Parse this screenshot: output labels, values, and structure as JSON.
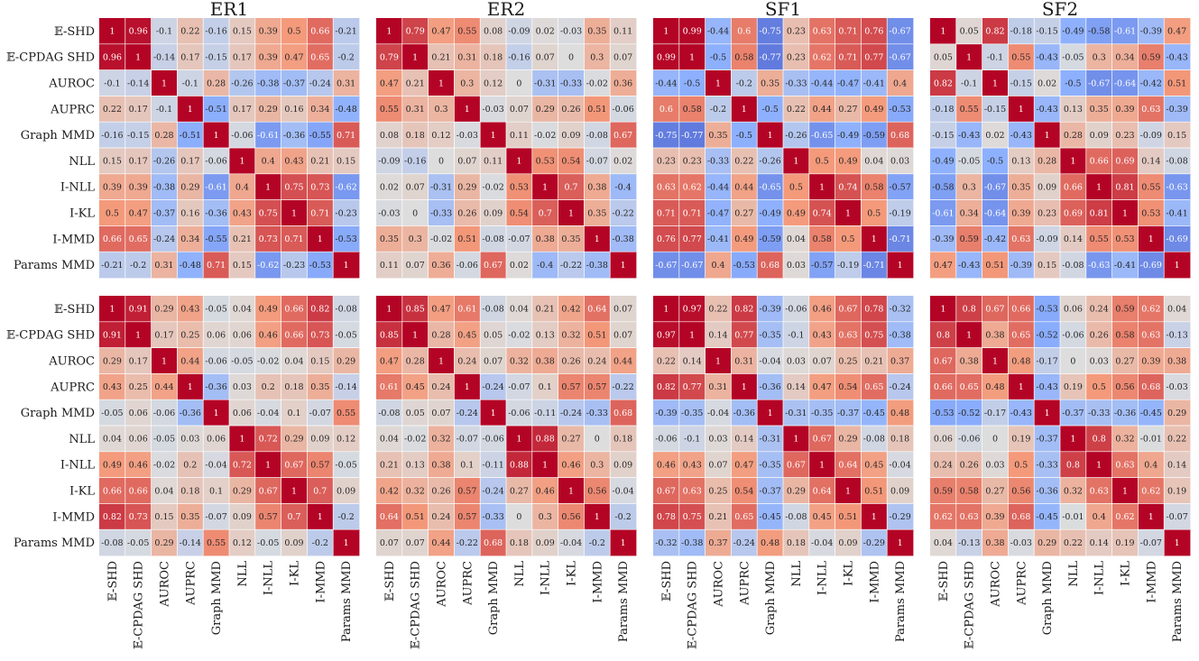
{
  "chart_data": {
    "type": "heatmap",
    "labels": [
      "𝔼-SHD",
      "𝔼-CPDAG SHD",
      "AUROC",
      "AUPRC",
      "Graph MMD",
      "NLL",
      "I-NLL",
      "I-KL",
      "I-MMD",
      "Params MMD"
    ],
    "colormap": "coolwarm",
    "vmin": -1,
    "vmax": 1,
    "panel_titles": [
      "ER1",
      "ER2",
      "SF1",
      "SF2"
    ],
    "panels": [
      {
        "title": "ER1",
        "row": 0,
        "col": 0,
        "matrix": [
          [
            1,
            0.96,
            -0.1,
            0.22,
            -0.16,
            0.15,
            0.39,
            0.5,
            0.66,
            -0.21
          ],
          [
            0.96,
            1,
            -0.14,
            0.17,
            -0.15,
            0.17,
            0.39,
            0.47,
            0.65,
            -0.2
          ],
          [
            -0.1,
            -0.14,
            1,
            -0.1,
            0.28,
            -0.26,
            -0.38,
            -0.37,
            -0.24,
            0.31
          ],
          [
            0.22,
            0.17,
            -0.1,
            1,
            -0.51,
            0.17,
            0.29,
            0.16,
            0.34,
            -0.48
          ],
          [
            -0.16,
            -0.15,
            0.28,
            -0.51,
            1,
            -0.06,
            -0.61,
            -0.36,
            -0.55,
            0.71
          ],
          [
            0.15,
            0.17,
            -0.26,
            0.17,
            -0.06,
            1,
            0.4,
            0.43,
            0.21,
            0.15
          ],
          [
            0.39,
            0.39,
            -0.38,
            0.29,
            -0.61,
            0.4,
            1,
            0.75,
            0.73,
            -0.62
          ],
          [
            0.5,
            0.47,
            -0.37,
            0.16,
            -0.36,
            0.43,
            0.75,
            1,
            0.71,
            -0.23
          ],
          [
            0.66,
            0.65,
            -0.24,
            0.34,
            -0.55,
            0.21,
            0.73,
            0.71,
            1,
            -0.53
          ],
          [
            -0.21,
            -0.2,
            0.31,
            -0.48,
            0.71,
            0.15,
            -0.62,
            -0.23,
            -0.53,
            1
          ]
        ]
      },
      {
        "title": "ER2",
        "row": 0,
        "col": 1,
        "matrix": [
          [
            1,
            0.79,
            0.47,
            0.55,
            0.08,
            -0.09,
            0.02,
            -0.03,
            0.35,
            0.11
          ],
          [
            0.79,
            1,
            0.21,
            0.31,
            0.18,
            -0.16,
            0.07,
            0,
            0.3,
            0.07
          ],
          [
            0.47,
            0.21,
            1,
            0.3,
            0.12,
            0,
            -0.31,
            -0.33,
            -0.02,
            0.36
          ],
          [
            0.55,
            0.31,
            0.3,
            1,
            -0.03,
            0.07,
            0.29,
            0.26,
            0.51,
            -0.06
          ],
          [
            0.08,
            0.18,
            0.12,
            -0.03,
            1,
            0.11,
            -0.02,
            0.09,
            -0.08,
            0.67
          ],
          [
            -0.09,
            -0.16,
            0,
            0.07,
            0.11,
            1,
            0.53,
            0.54,
            -0.07,
            0.02
          ],
          [
            0.02,
            0.07,
            -0.31,
            0.29,
            -0.02,
            0.53,
            1,
            0.7,
            0.38,
            -0.4
          ],
          [
            -0.03,
            0,
            -0.33,
            0.26,
            0.09,
            0.54,
            0.7,
            1,
            0.35,
            -0.22
          ],
          [
            0.35,
            0.3,
            -0.02,
            0.51,
            -0.08,
            -0.07,
            0.38,
            0.35,
            1,
            -0.38
          ],
          [
            0.11,
            0.07,
            0.36,
            -0.06,
            0.67,
            0.02,
            -0.4,
            -0.22,
            -0.38,
            1
          ]
        ]
      },
      {
        "title": "SF1",
        "row": 0,
        "col": 2,
        "matrix": [
          [
            1,
            0.99,
            -0.44,
            0.6,
            -0.75,
            0.23,
            0.63,
            0.71,
            0.76,
            -0.67
          ],
          [
            0.99,
            1,
            -0.5,
            0.58,
            -0.77,
            0.23,
            0.62,
            0.71,
            0.77,
            -0.67
          ],
          [
            -0.44,
            -0.5,
            1,
            -0.2,
            0.35,
            -0.33,
            -0.44,
            -0.47,
            -0.41,
            0.4
          ],
          [
            0.6,
            0.58,
            -0.2,
            1,
            -0.5,
            0.22,
            0.44,
            0.27,
            0.49,
            -0.53
          ],
          [
            -0.75,
            -0.77,
            0.35,
            -0.5,
            1,
            -0.26,
            -0.65,
            -0.49,
            -0.59,
            0.68
          ],
          [
            0.23,
            0.23,
            -0.33,
            0.22,
            -0.26,
            1,
            0.5,
            0.49,
            0.04,
            0.03
          ],
          [
            0.63,
            0.62,
            -0.44,
            0.44,
            -0.65,
            0.5,
            1,
            0.74,
            0.58,
            -0.57
          ],
          [
            0.71,
            0.71,
            -0.47,
            0.27,
            -0.49,
            0.49,
            0.74,
            1,
            0.5,
            -0.19
          ],
          [
            0.76,
            0.77,
            -0.41,
            0.49,
            -0.59,
            0.04,
            0.58,
            0.5,
            1,
            -0.71
          ],
          [
            -0.67,
            -0.67,
            0.4,
            -0.53,
            0.68,
            0.03,
            -0.57,
            -0.19,
            -0.71,
            1
          ]
        ]
      },
      {
        "title": "SF2",
        "row": 0,
        "col": 3,
        "matrix": [
          [
            1,
            0.05,
            0.82,
            -0.18,
            -0.15,
            -0.49,
            -0.58,
            -0.61,
            -0.39,
            0.47
          ],
          [
            0.05,
            1,
            -0.1,
            0.55,
            -0.43,
            -0.05,
            0.3,
            0.34,
            0.59,
            -0.43
          ],
          [
            0.82,
            -0.1,
            1,
            -0.15,
            0.02,
            -0.5,
            -0.67,
            -0.64,
            -0.42,
            0.51
          ],
          [
            -0.18,
            0.55,
            -0.15,
            1,
            -0.43,
            0.13,
            0.35,
            0.39,
            0.63,
            -0.39
          ],
          [
            -0.15,
            -0.43,
            0.02,
            -0.43,
            1,
            0.28,
            0.09,
            0.23,
            -0.09,
            0.15
          ],
          [
            -0.49,
            -0.05,
            -0.5,
            0.13,
            0.28,
            1,
            0.66,
            0.69,
            0.14,
            -0.08
          ],
          [
            -0.58,
            0.3,
            -0.67,
            0.35,
            0.09,
            0.66,
            1,
            0.81,
            0.55,
            -0.63
          ],
          [
            -0.61,
            0.34,
            -0.64,
            0.39,
            0.23,
            0.69,
            0.81,
            1,
            0.53,
            -0.41
          ],
          [
            -0.39,
            0.59,
            -0.42,
            0.63,
            -0.09,
            0.14,
            0.55,
            0.53,
            1,
            -0.69
          ],
          [
            0.47,
            -0.43,
            0.51,
            -0.39,
            0.15,
            -0.08,
            -0.63,
            -0.41,
            -0.69,
            1
          ]
        ]
      },
      {
        "title": "",
        "row": 1,
        "col": 0,
        "matrix": [
          [
            1,
            0.91,
            0.29,
            0.43,
            -0.05,
            0.04,
            0.49,
            0.66,
            0.82,
            -0.08
          ],
          [
            0.91,
            1,
            0.17,
            0.25,
            0.06,
            0.06,
            0.46,
            0.66,
            0.73,
            -0.05
          ],
          [
            0.29,
            0.17,
            1,
            0.44,
            -0.06,
            -0.05,
            -0.02,
            0.04,
            0.15,
            0.29
          ],
          [
            0.43,
            0.25,
            0.44,
            1,
            -0.36,
            0.03,
            0.2,
            0.18,
            0.35,
            -0.14
          ],
          [
            -0.05,
            0.06,
            -0.06,
            -0.36,
            1,
            0.06,
            -0.04,
            0.1,
            -0.07,
            0.55
          ],
          [
            0.04,
            0.06,
            -0.05,
            0.03,
            0.06,
            1,
            0.72,
            0.29,
            0.09,
            0.12
          ],
          [
            0.49,
            0.46,
            -0.02,
            0.2,
            -0.04,
            0.72,
            1,
            0.67,
            0.57,
            -0.05
          ],
          [
            0.66,
            0.66,
            0.04,
            0.18,
            0.1,
            0.29,
            0.67,
            1,
            0.7,
            0.09
          ],
          [
            0.82,
            0.73,
            0.15,
            0.35,
            -0.07,
            0.09,
            0.57,
            0.7,
            1,
            -0.2
          ],
          [
            -0.08,
            -0.05,
            0.29,
            -0.14,
            0.55,
            0.12,
            -0.05,
            0.09,
            -0.2,
            1
          ]
        ]
      },
      {
        "title": "",
        "row": 1,
        "col": 1,
        "matrix": [
          [
            1,
            0.85,
            0.47,
            0.61,
            -0.08,
            0.04,
            0.21,
            0.42,
            0.64,
            0.07
          ],
          [
            0.85,
            1,
            0.28,
            0.45,
            0.05,
            -0.02,
            0.13,
            0.32,
            0.51,
            0.07
          ],
          [
            0.47,
            0.28,
            1,
            0.24,
            0.07,
            0.32,
            0.38,
            0.26,
            0.24,
            0.44
          ],
          [
            0.61,
            0.45,
            0.24,
            1,
            -0.24,
            -0.07,
            0.1,
            0.57,
            0.57,
            -0.22
          ],
          [
            -0.08,
            0.05,
            0.07,
            -0.24,
            1,
            -0.06,
            -0.11,
            -0.24,
            -0.33,
            0.68
          ],
          [
            0.04,
            -0.02,
            0.32,
            -0.07,
            -0.06,
            1,
            0.88,
            0.27,
            0,
            0.18
          ],
          [
            0.21,
            0.13,
            0.38,
            0.1,
            -0.11,
            0.88,
            1,
            0.46,
            0.3,
            0.09
          ],
          [
            0.42,
            0.32,
            0.26,
            0.57,
            -0.24,
            0.27,
            0.46,
            1,
            0.56,
            -0.04
          ],
          [
            0.64,
            0.51,
            0.24,
            0.57,
            -0.33,
            0,
            0.3,
            0.56,
            1,
            -0.2
          ],
          [
            0.07,
            0.07,
            0.44,
            -0.22,
            0.68,
            0.18,
            0.09,
            -0.04,
            -0.2,
            1
          ]
        ]
      },
      {
        "title": "",
        "row": 1,
        "col": 2,
        "matrix": [
          [
            1,
            0.97,
            0.22,
            0.82,
            -0.39,
            -0.06,
            0.46,
            0.67,
            0.78,
            -0.32
          ],
          [
            0.97,
            1,
            0.14,
            0.77,
            -0.35,
            -0.1,
            0.43,
            0.63,
            0.75,
            -0.38
          ],
          [
            0.22,
            0.14,
            1,
            0.31,
            -0.04,
            0.03,
            0.07,
            0.25,
            0.21,
            0.37
          ],
          [
            0.82,
            0.77,
            0.31,
            1,
            -0.36,
            0.14,
            0.47,
            0.54,
            0.65,
            -0.24
          ],
          [
            -0.39,
            -0.35,
            -0.04,
            -0.36,
            1,
            -0.31,
            -0.35,
            -0.37,
            -0.45,
            0.48
          ],
          [
            -0.06,
            -0.1,
            0.03,
            0.14,
            -0.31,
            1,
            0.67,
            0.29,
            -0.08,
            0.18
          ],
          [
            0.46,
            0.43,
            0.07,
            0.47,
            -0.35,
            0.67,
            1,
            0.64,
            0.45,
            -0.04
          ],
          [
            0.67,
            0.63,
            0.25,
            0.54,
            -0.37,
            0.29,
            0.64,
            1,
            0.51,
            0.09
          ],
          [
            0.78,
            0.75,
            0.21,
            0.65,
            -0.45,
            -0.08,
            0.45,
            0.51,
            1,
            -0.29
          ],
          [
            -0.32,
            -0.38,
            0.37,
            -0.24,
            0.48,
            0.18,
            -0.04,
            0.09,
            -0.29,
            1
          ]
        ]
      },
      {
        "title": "",
        "row": 1,
        "col": 3,
        "matrix": [
          [
            1,
            0.8,
            0.67,
            0.66,
            -0.53,
            0.06,
            0.24,
            0.59,
            0.62,
            0.04
          ],
          [
            0.8,
            1,
            0.38,
            0.65,
            -0.52,
            -0.06,
            0.26,
            0.58,
            0.63,
            -0.13
          ],
          [
            0.67,
            0.38,
            1,
            0.48,
            -0.17,
            0,
            0.03,
            0.27,
            0.39,
            0.38
          ],
          [
            0.66,
            0.65,
            0.48,
            1,
            -0.43,
            0.19,
            0.5,
            0.56,
            0.68,
            -0.03
          ],
          [
            -0.53,
            -0.52,
            -0.17,
            -0.43,
            1,
            -0.37,
            -0.33,
            -0.36,
            -0.45,
            0.29
          ],
          [
            0.06,
            -0.06,
            0,
            0.19,
            -0.37,
            1,
            0.8,
            0.32,
            -0.01,
            0.22
          ],
          [
            0.24,
            0.26,
            0.03,
            0.5,
            -0.33,
            0.8,
            1,
            0.63,
            0.4,
            0.14
          ],
          [
            0.59,
            0.58,
            0.27,
            0.56,
            -0.36,
            0.32,
            0.63,
            1,
            0.62,
            0.19
          ],
          [
            0.62,
            0.63,
            0.39,
            0.68,
            -0.45,
            -0.01,
            0.4,
            0.62,
            1,
            -0.07
          ],
          [
            0.04,
            -0.13,
            0.38,
            -0.03,
            0.29,
            0.22,
            0.14,
            0.19,
            -0.07,
            1
          ]
        ]
      }
    ]
  }
}
